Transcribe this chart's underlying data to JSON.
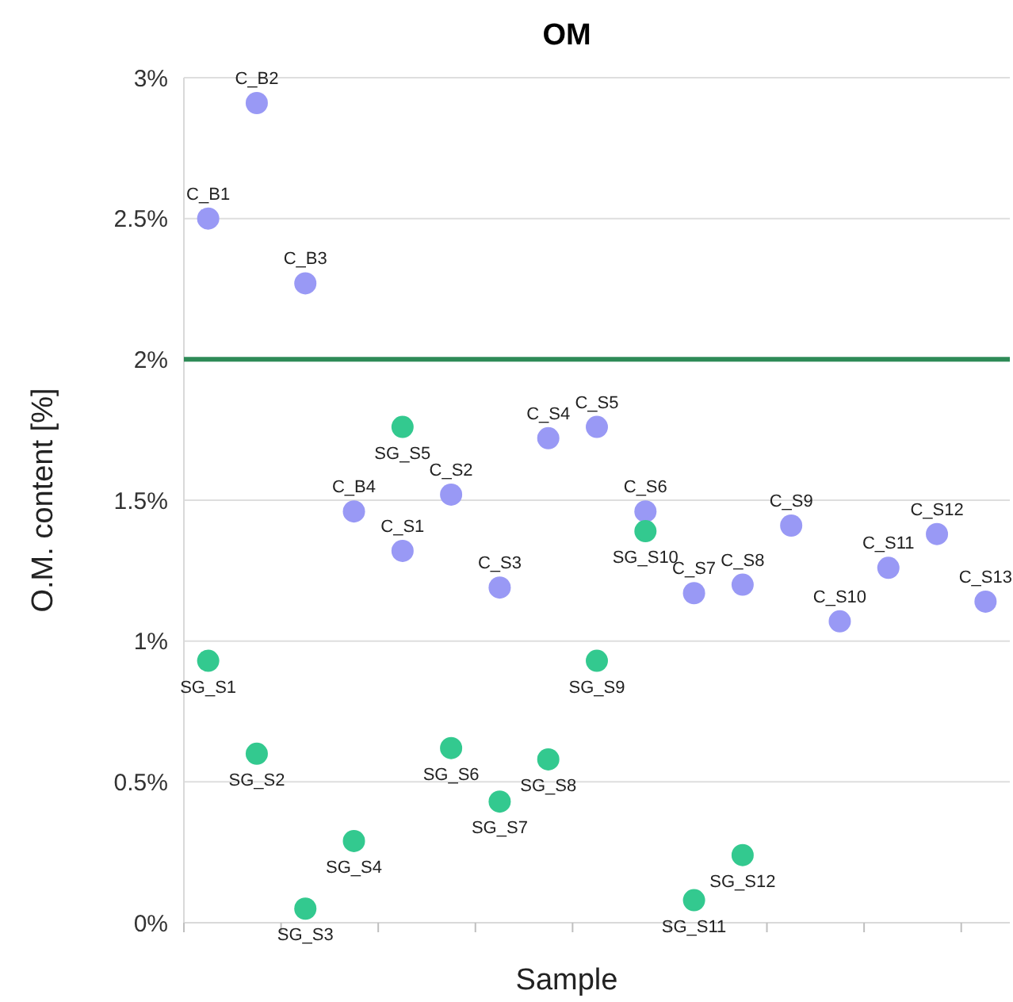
{
  "chart_data": {
    "type": "scatter",
    "title": "OM",
    "xlabel": "Sample",
    "ylabel": "O.M. content [%]",
    "categories": [
      null,
      null,
      null,
      null,
      null,
      null,
      null,
      null,
      null,
      null,
      null,
      null,
      null,
      null,
      null,
      null,
      null
    ],
    "ylim": [
      0,
      3
    ],
    "yticks": [
      {
        "value": 0,
        "label": "0%"
      },
      {
        "value": 0.5,
        "label": "0.5%"
      },
      {
        "value": 1,
        "label": "1%"
      },
      {
        "value": 1.5,
        "label": "1.5%"
      },
      {
        "value": 2,
        "label": "2%"
      },
      {
        "value": 2.5,
        "label": "2.5%"
      },
      {
        "value": 3,
        "label": "3%"
      }
    ],
    "grid": "y",
    "marker": "circle",
    "tick_labels": "y",
    "series": [
      {
        "color": "#9999f5",
        "values": [
          2.5,
          2.91,
          2.27,
          1.46,
          1.32,
          1.52,
          1.19,
          1.72,
          1.76,
          1.46,
          1.17,
          1.2,
          1.41,
          1.07,
          1.26,
          1.38,
          1.14
        ]
      },
      {
        "color": "#33c98f",
        "values": [
          0.93,
          0.6,
          0.05,
          0.29,
          1.76,
          0.62,
          0.43,
          0.58,
          0.93,
          1.39,
          0.08,
          0.24,
          null,
          null,
          null,
          null,
          null
        ]
      }
    ],
    "ref_lines": [
      {
        "axis": "y",
        "value": 2,
        "color": "#2e8b57"
      }
    ],
    "annotations": [
      {
        "text": "C_B1",
        "y": 2.5
      },
      {
        "text": "C_B2",
        "y": 2.91
      },
      {
        "text": "C_B3",
        "y": 2.27
      },
      {
        "text": "C_B4",
        "y": 1.46
      },
      {
        "text": "C_S1",
        "y": 1.32
      },
      {
        "text": "C_S2",
        "y": 1.52
      },
      {
        "text": "C_S3",
        "y": 1.19
      },
      {
        "text": "C_S4",
        "y": 1.72
      },
      {
        "text": "C_S5",
        "y": 1.76
      },
      {
        "text": "C_S6",
        "y": 1.46
      },
      {
        "text": "C_S7",
        "y": 1.17
      },
      {
        "text": "C_S8",
        "y": 1.2
      },
      {
        "text": "C_S9",
        "y": 1.41
      },
      {
        "text": "C_S10",
        "y": 1.07
      },
      {
        "text": "C_S11",
        "y": 1.26
      },
      {
        "text": "C_S12",
        "y": 1.38
      },
      {
        "text": "C_S13",
        "y": 1.14
      },
      {
        "text": "SG_S1",
        "y": 0.93
      },
      {
        "text": "SG_S2",
        "y": 0.6
      },
      {
        "text": "SG_S3",
        "y": 0.05
      },
      {
        "text": "SG_S4",
        "y": 0.29
      },
      {
        "text": "SG_S5",
        "y": 1.76
      },
      {
        "text": "SG_S6",
        "y": 0.62
      },
      {
        "text": "SG_S7",
        "y": 0.43
      },
      {
        "text": "SG_S8",
        "y": 0.58
      },
      {
        "text": "SG_S9",
        "y": 0.93
      },
      {
        "text": "SG_S10",
        "y": 1.39
      },
      {
        "text": "SG_S11",
        "y": 0.08
      },
      {
        "text": "SG_S12",
        "y": 0.24
      }
    ]
  }
}
